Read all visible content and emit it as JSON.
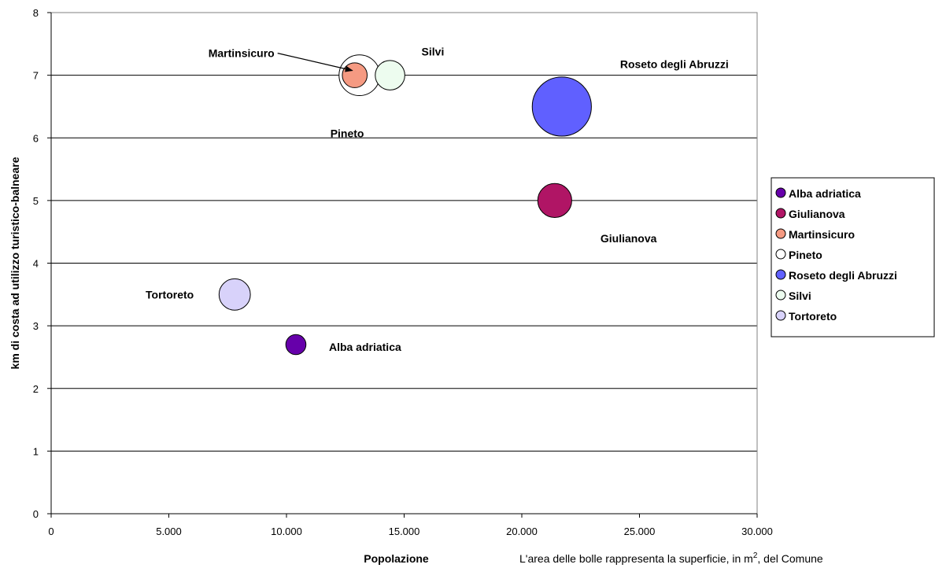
{
  "chart_data": {
    "type": "bubble",
    "xlabel": "Popolazione",
    "ylabel": "km di costa ad utilizzo turistico-balneare",
    "xlim": [
      0,
      30000
    ],
    "ylim": [
      0,
      8
    ],
    "x_ticks": [
      "0",
      "5.000",
      "10.000",
      "15.000",
      "20.000",
      "25.000",
      "30.000"
    ],
    "y_ticks": [
      "0",
      "1",
      "2",
      "3",
      "4",
      "5",
      "6",
      "7",
      "8"
    ],
    "grid": "horizontal",
    "legend_position": "right",
    "note": {
      "text_before": "L'area delle bolle rappresenta la superficie, in m",
      "superscript": "2",
      "text_after": ", del Comune"
    },
    "series": [
      {
        "name": "Alba adriatica",
        "x": 10400,
        "y": 2.7,
        "size": 9.5,
        "color": "#6600aa",
        "label": "Alba adriatica"
      },
      {
        "name": "Giulianova",
        "x": 21400,
        "y": 5.0,
        "size": 27,
        "color": "#b01565",
        "label": "Giulianova"
      },
      {
        "name": "Martinsicuro",
        "x": 12900,
        "y": 7.0,
        "size": 14.5,
        "color": "#f59a82",
        "label": "Martinsicuro"
      },
      {
        "name": "Pineto",
        "x": 13100,
        "y": 7.0,
        "size": 39,
        "color": "#ffffff",
        "label": "Pineto"
      },
      {
        "name": "Roseto degli Abruzzi",
        "x": 21700,
        "y": 6.5,
        "size": 82,
        "color": "#6060ff",
        "label": "Roseto degli Abruzzi"
      },
      {
        "name": "Silvi",
        "x": 14400,
        "y": 7.0,
        "size": 20.5,
        "color": "#edfcef",
        "label": "Silvi"
      },
      {
        "name": "Tortoreto",
        "x": 7800,
        "y": 3.5,
        "size": 23,
        "color": "#d8d2fa",
        "label": "Tortoreto"
      }
    ],
    "draw_order": [
      "Pineto",
      "Giulianova",
      "Roseto degli Abruzzi",
      "Tortoreto",
      "Alba adriatica",
      "Martinsicuro",
      "Silvi"
    ]
  }
}
